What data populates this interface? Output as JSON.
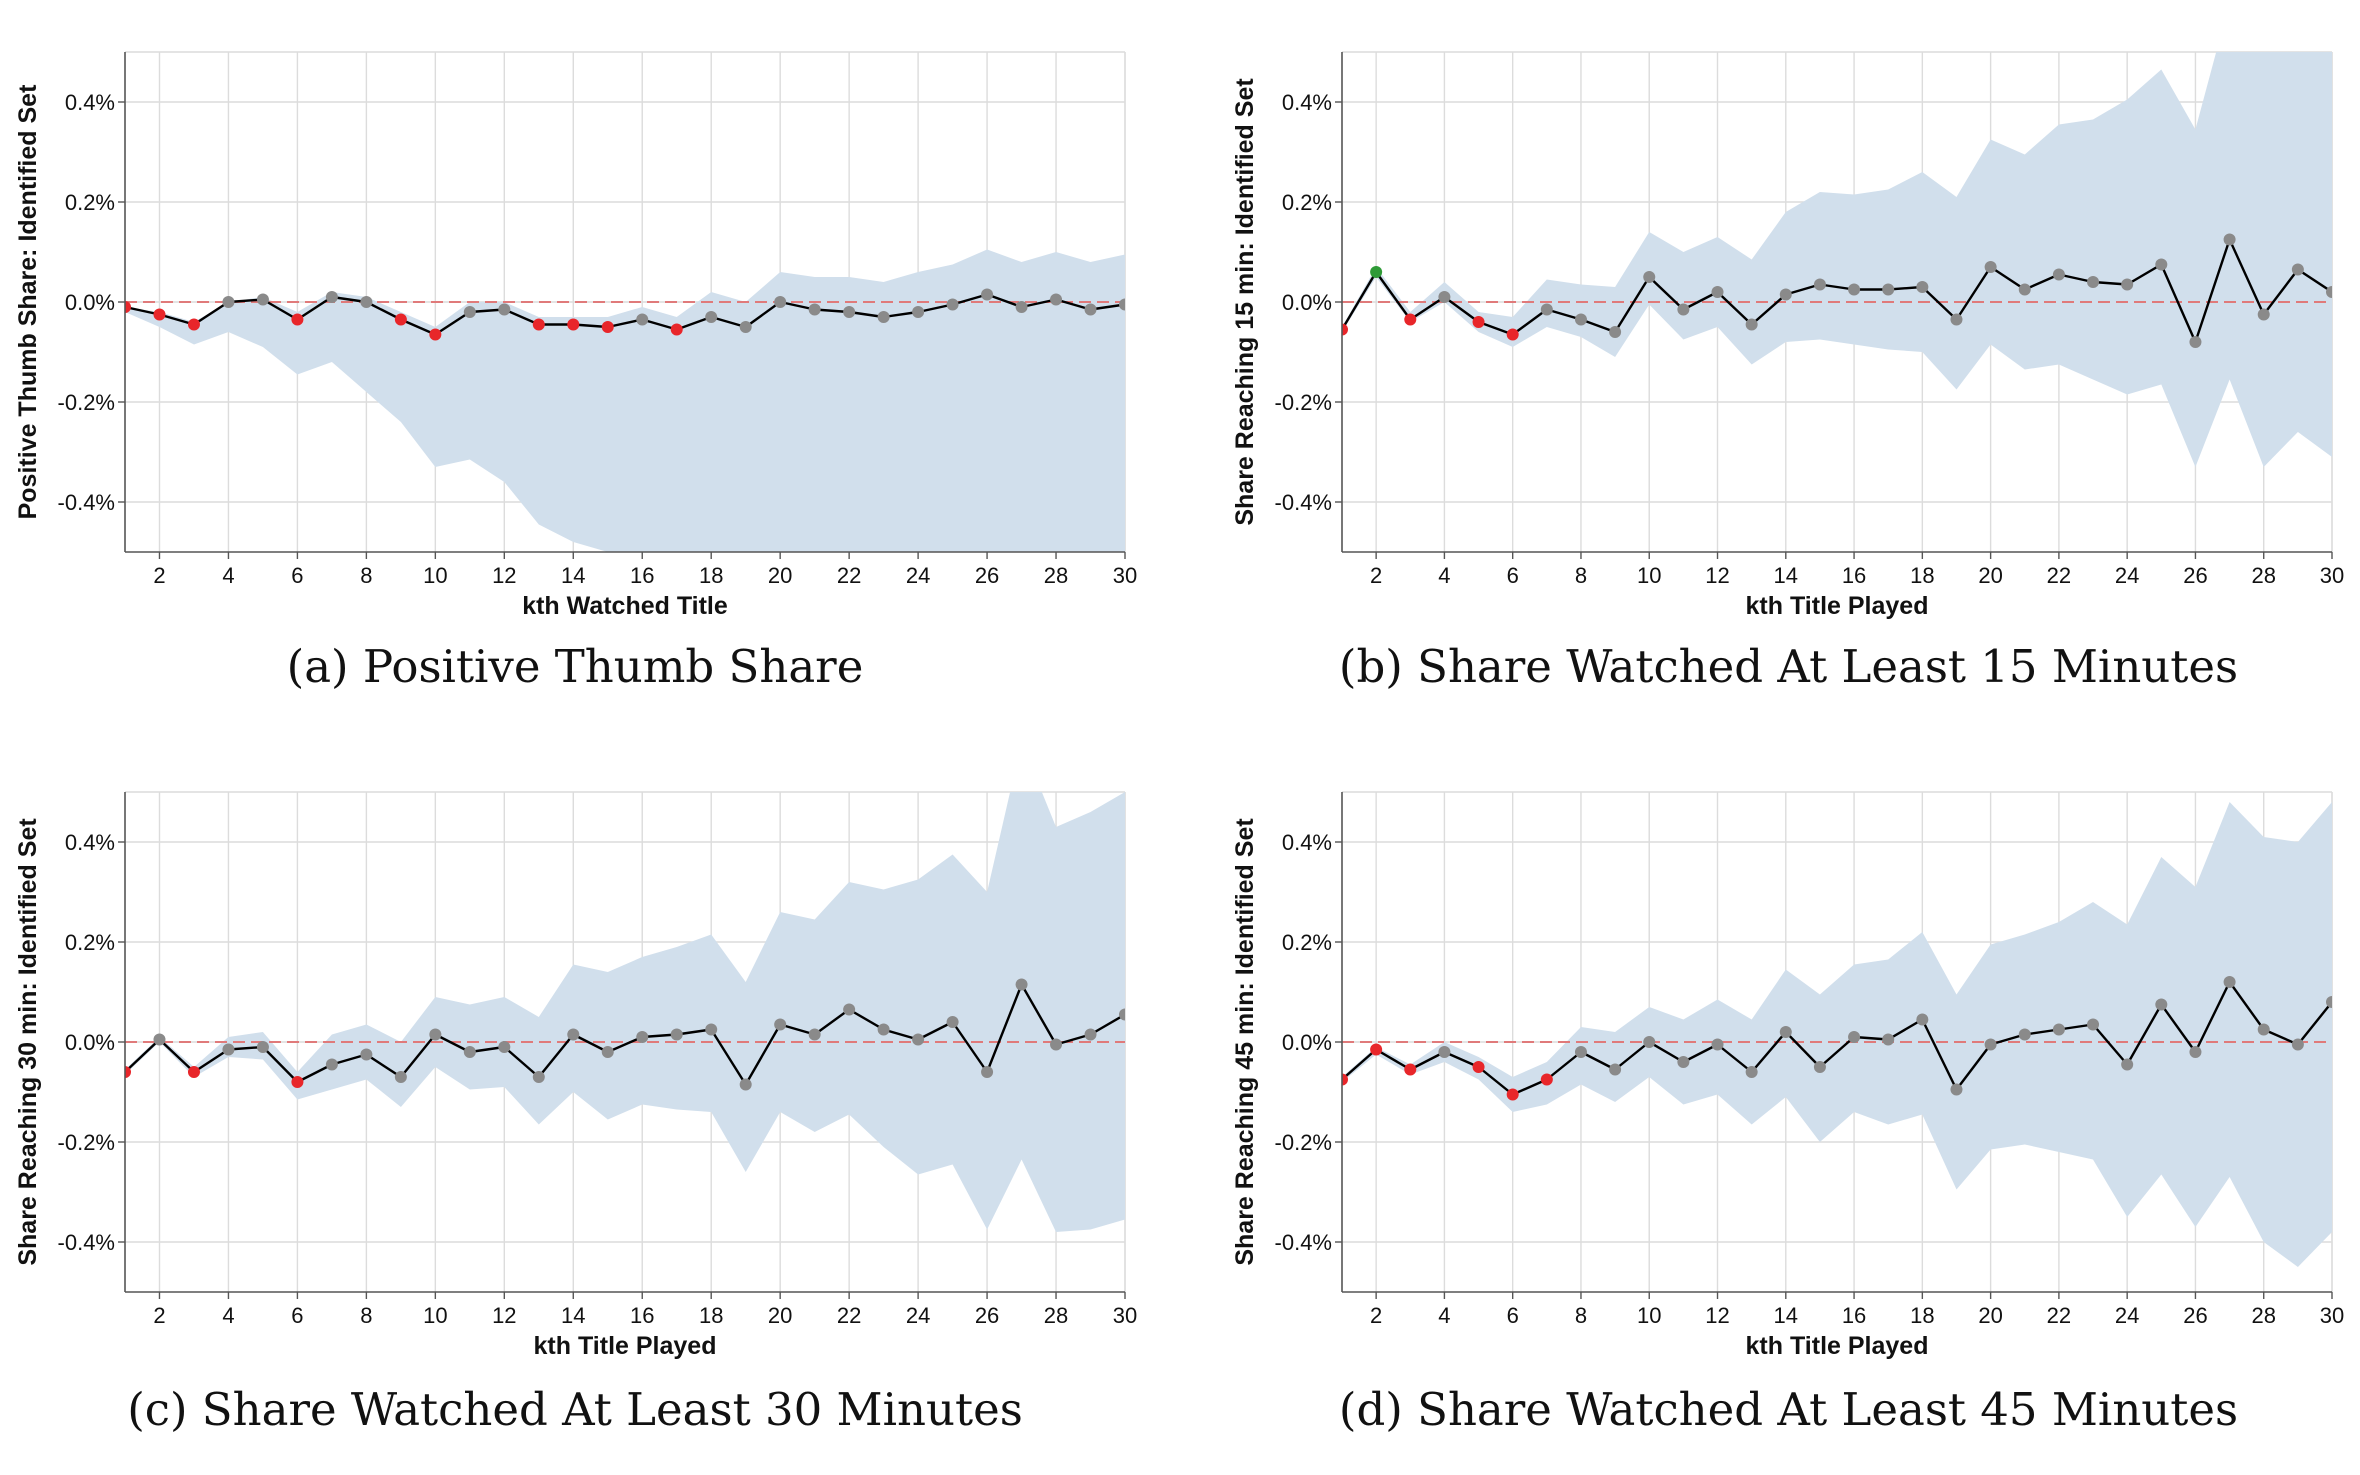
{
  "chart_data": [
    {
      "type": "line",
      "panel": "a",
      "caption": "(a) Positive Thumb Share",
      "xlabel": "kth Watched Title",
      "ylabel": "Positive Thumb Share: Identified Set",
      "xlim": [
        1,
        30
      ],
      "ylim": [
        -0.5,
        0.5
      ],
      "xticks": [
        2,
        4,
        6,
        8,
        10,
        12,
        14,
        16,
        18,
        20,
        22,
        24,
        26,
        28,
        30
      ],
      "yticks": [
        -0.4,
        -0.2,
        0.0,
        0.2,
        0.4
      ],
      "ytick_labels": [
        "-0.4%",
        "-0.2%",
        "0.0%",
        "0.2%",
        "0.4%"
      ],
      "reference_line": 0,
      "grid": true,
      "x": [
        1,
        2,
        3,
        4,
        5,
        6,
        7,
        8,
        9,
        10,
        11,
        12,
        13,
        14,
        15,
        16,
        17,
        18,
        19,
        20,
        21,
        22,
        23,
        24,
        25,
        26,
        27,
        28,
        29,
        30
      ],
      "estimate": [
        -0.01,
        -0.025,
        -0.045,
        0.0,
        0.005,
        -0.035,
        0.01,
        0.0,
        -0.035,
        -0.065,
        -0.02,
        -0.015,
        -0.045,
        -0.045,
        -0.05,
        -0.035,
        -0.055,
        -0.03,
        -0.05,
        0.0,
        -0.015,
        -0.02,
        -0.03,
        -0.02,
        -0.005,
        0.015,
        -0.01,
        0.005,
        -0.015,
        -0.005
      ],
      "point_status": [
        "red",
        "red",
        "red",
        "grey",
        "grey",
        "red",
        "grey",
        "grey",
        "red",
        "red",
        "grey",
        "grey",
        "red",
        "red",
        "red",
        "grey",
        "red",
        "grey",
        "grey",
        "grey",
        "grey",
        "grey",
        "grey",
        "grey",
        "grey",
        "grey",
        "grey",
        "grey",
        "grey",
        "grey"
      ],
      "ci_upper": [
        -0.01,
        -0.02,
        -0.04,
        0.0,
        0.01,
        -0.02,
        0.02,
        0.01,
        -0.02,
        -0.05,
        0.0,
        0.0,
        -0.03,
        -0.03,
        -0.03,
        -0.01,
        -0.03,
        0.02,
        0.0,
        0.06,
        0.05,
        0.05,
        0.04,
        0.06,
        0.075,
        0.105,
        0.08,
        0.1,
        0.08,
        0.095
      ],
      "ci_lower": [
        -0.02,
        -0.05,
        -0.085,
        -0.06,
        -0.09,
        -0.145,
        -0.12,
        -0.18,
        -0.24,
        -0.33,
        -0.315,
        -0.36,
        -0.445,
        -0.48,
        -0.5,
        -0.5,
        -0.5,
        -0.5,
        -0.5,
        -0.5,
        -0.5,
        -0.5,
        -0.5,
        -0.5,
        -0.5,
        -0.5,
        -0.5,
        -0.5,
        -0.5,
        -0.5
      ]
    },
    {
      "type": "line",
      "panel": "b",
      "caption": "(b) Share Watched At Least 15 Minutes",
      "xlabel": "kth Title Played",
      "ylabel": "Share Reaching 15 min: Identified Set",
      "xlim": [
        1,
        30
      ],
      "ylim": [
        -0.5,
        0.5
      ],
      "xticks": [
        2,
        4,
        6,
        8,
        10,
        12,
        14,
        16,
        18,
        20,
        22,
        24,
        26,
        28,
        30
      ],
      "yticks": [
        -0.4,
        -0.2,
        0.0,
        0.2,
        0.4
      ],
      "ytick_labels": [
        "-0.4%",
        "-0.2%",
        "0.0%",
        "0.2%",
        "0.4%"
      ],
      "reference_line": 0,
      "grid": true,
      "x": [
        1,
        2,
        3,
        4,
        5,
        6,
        7,
        8,
        9,
        10,
        11,
        12,
        13,
        14,
        15,
        16,
        17,
        18,
        19,
        20,
        21,
        22,
        23,
        24,
        25,
        26,
        27,
        28,
        29,
        30
      ],
      "estimate": [
        -0.055,
        0.06,
        -0.035,
        0.01,
        -0.04,
        -0.065,
        -0.015,
        -0.035,
        -0.06,
        0.05,
        -0.015,
        0.02,
        -0.045,
        0.015,
        0.035,
        0.025,
        0.025,
        0.03,
        -0.035,
        0.07,
        0.025,
        0.055,
        0.04,
        0.035,
        0.075,
        -0.08,
        0.125,
        -0.025,
        0.065,
        0.02
      ],
      "point_status": [
        "red",
        "green",
        "red",
        "grey",
        "red",
        "red",
        "grey",
        "grey",
        "grey",
        "grey",
        "grey",
        "grey",
        "grey",
        "grey",
        "grey",
        "grey",
        "grey",
        "grey",
        "grey",
        "grey",
        "grey",
        "grey",
        "grey",
        "grey",
        "grey",
        "grey",
        "grey",
        "grey",
        "grey",
        "grey"
      ],
      "ci_upper": [
        -0.05,
        0.07,
        -0.02,
        0.04,
        -0.02,
        -0.03,
        0.045,
        0.035,
        0.03,
        0.14,
        0.1,
        0.13,
        0.085,
        0.18,
        0.22,
        0.215,
        0.225,
        0.26,
        0.21,
        0.325,
        0.295,
        0.355,
        0.365,
        0.405,
        0.465,
        0.345,
        0.6,
        0.5,
        0.6,
        0.6
      ],
      "ci_lower": [
        -0.06,
        0.05,
        -0.04,
        0.0,
        -0.06,
        -0.09,
        -0.05,
        -0.07,
        -0.11,
        -0.005,
        -0.075,
        -0.05,
        -0.125,
        -0.08,
        -0.075,
        -0.085,
        -0.095,
        -0.1,
        -0.175,
        -0.085,
        -0.135,
        -0.125,
        -0.155,
        -0.185,
        -0.165,
        -0.33,
        -0.155,
        -0.33,
        -0.26,
        -0.31
      ]
    },
    {
      "type": "line",
      "panel": "c",
      "caption": "(c) Share Watched At Least 30 Minutes",
      "xlabel": "kth Title Played",
      "ylabel": "Share Reaching 30 min: Identified Set",
      "xlim": [
        1,
        30
      ],
      "ylim": [
        -0.5,
        0.5
      ],
      "xticks": [
        2,
        4,
        6,
        8,
        10,
        12,
        14,
        16,
        18,
        20,
        22,
        24,
        26,
        28,
        30
      ],
      "yticks": [
        -0.4,
        -0.2,
        0.0,
        0.2,
        0.4
      ],
      "ytick_labels": [
        "-0.4%",
        "-0.2%",
        "0.0%",
        "0.2%",
        "0.4%"
      ],
      "reference_line": 0,
      "grid": true,
      "x": [
        1,
        2,
        3,
        4,
        5,
        6,
        7,
        8,
        9,
        10,
        11,
        12,
        13,
        14,
        15,
        16,
        17,
        18,
        19,
        20,
        21,
        22,
        23,
        24,
        25,
        26,
        27,
        28,
        29,
        30
      ],
      "estimate": [
        -0.06,
        0.005,
        -0.06,
        -0.015,
        -0.01,
        -0.08,
        -0.045,
        -0.025,
        -0.07,
        0.015,
        -0.02,
        -0.01,
        -0.07,
        0.015,
        -0.02,
        0.01,
        0.015,
        0.025,
        -0.085,
        0.035,
        0.015,
        0.065,
        0.025,
        0.005,
        0.04,
        -0.06,
        0.115,
        -0.005,
        0.015,
        0.055
      ],
      "point_status": [
        "red",
        "grey",
        "red",
        "grey",
        "grey",
        "red",
        "grey",
        "grey",
        "grey",
        "grey",
        "grey",
        "grey",
        "grey",
        "grey",
        "grey",
        "grey",
        "grey",
        "grey",
        "grey",
        "grey",
        "grey",
        "grey",
        "grey",
        "grey",
        "grey",
        "grey",
        "grey",
        "grey",
        "grey",
        "grey"
      ],
      "ci_upper": [
        -0.055,
        0.01,
        -0.05,
        0.01,
        0.02,
        -0.06,
        0.015,
        0.035,
        0.0,
        0.09,
        0.075,
        0.09,
        0.05,
        0.155,
        0.14,
        0.17,
        0.19,
        0.215,
        0.12,
        0.26,
        0.245,
        0.32,
        0.305,
        0.325,
        0.375,
        0.3,
        0.6,
        0.43,
        0.46,
        0.5
      ],
      "ci_lower": [
        -0.065,
        0.0,
        -0.07,
        -0.03,
        -0.035,
        -0.115,
        -0.095,
        -0.075,
        -0.13,
        -0.05,
        -0.095,
        -0.09,
        -0.165,
        -0.1,
        -0.155,
        -0.125,
        -0.135,
        -0.14,
        -0.26,
        -0.14,
        -0.18,
        -0.145,
        -0.21,
        -0.265,
        -0.245,
        -0.375,
        -0.235,
        -0.38,
        -0.375,
        -0.355
      ]
    },
    {
      "type": "line",
      "panel": "d",
      "caption": "(d) Share Watched At Least 45 Minutes",
      "xlabel": "kth Title Played",
      "ylabel": "Share Reaching 45 min: Identified Set",
      "xlim": [
        1,
        30
      ],
      "ylim": [
        -0.5,
        0.5
      ],
      "xticks": [
        2,
        4,
        6,
        8,
        10,
        12,
        14,
        16,
        18,
        20,
        22,
        24,
        26,
        28,
        30
      ],
      "yticks": [
        -0.4,
        -0.2,
        0.0,
        0.2,
        0.4
      ],
      "ytick_labels": [
        "-0.4%",
        "-0.2%",
        "0.0%",
        "0.2%",
        "0.4%"
      ],
      "reference_line": 0,
      "grid": true,
      "x": [
        1,
        2,
        3,
        4,
        5,
        6,
        7,
        8,
        9,
        10,
        11,
        12,
        13,
        14,
        15,
        16,
        17,
        18,
        19,
        20,
        21,
        22,
        23,
        24,
        25,
        26,
        27,
        28,
        29,
        30
      ],
      "estimate": [
        -0.075,
        -0.015,
        -0.055,
        -0.02,
        -0.05,
        -0.105,
        -0.075,
        -0.02,
        -0.055,
        0.0,
        -0.04,
        -0.005,
        -0.06,
        0.02,
        -0.05,
        0.01,
        0.005,
        0.045,
        -0.095,
        -0.005,
        0.015,
        0.025,
        0.035,
        -0.045,
        0.075,
        -0.02,
        0.12,
        0.025,
        -0.005,
        0.08
      ],
      "point_status": [
        "red",
        "red",
        "red",
        "grey",
        "red",
        "red",
        "red",
        "grey",
        "grey",
        "grey",
        "grey",
        "grey",
        "grey",
        "grey",
        "grey",
        "grey",
        "grey",
        "grey",
        "grey",
        "grey",
        "grey",
        "grey",
        "grey",
        "grey",
        "grey",
        "grey",
        "grey",
        "grey",
        "grey",
        "grey"
      ],
      "ci_upper": [
        -0.07,
        -0.01,
        -0.045,
        0.0,
        -0.03,
        -0.07,
        -0.04,
        0.03,
        0.02,
        0.07,
        0.045,
        0.085,
        0.045,
        0.145,
        0.095,
        0.155,
        0.165,
        0.22,
        0.095,
        0.195,
        0.215,
        0.24,
        0.28,
        0.235,
        0.37,
        0.31,
        0.48,
        0.41,
        0.4,
        0.48
      ],
      "ci_lower": [
        -0.08,
        -0.025,
        -0.065,
        -0.04,
        -0.075,
        -0.14,
        -0.125,
        -0.085,
        -0.12,
        -0.07,
        -0.125,
        -0.105,
        -0.165,
        -0.11,
        -0.2,
        -0.14,
        -0.165,
        -0.145,
        -0.295,
        -0.215,
        -0.205,
        -0.22,
        -0.235,
        -0.35,
        -0.265,
        -0.37,
        -0.27,
        -0.4,
        -0.45,
        -0.38
      ]
    }
  ],
  "colors": {
    "band": "#d1dfec",
    "line": "#000000",
    "grid": "#dcdcdc",
    "reference": "#e07a7a",
    "point_grey": "#8a8a8a",
    "point_red": "#e8262a",
    "point_green": "#2e9a36",
    "axis": "#555555"
  }
}
